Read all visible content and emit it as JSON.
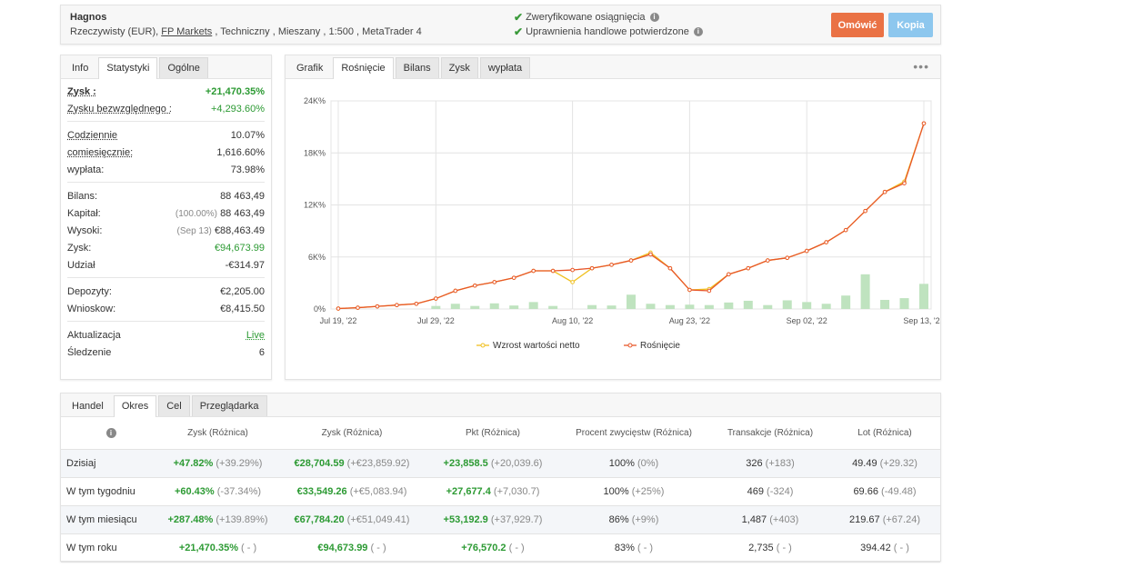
{
  "header": {
    "name": "Hagnos",
    "meta_pre": "Rzeczywisty (EUR), ",
    "broker": "FP Markets",
    "meta_post": " , Techniczny , Mieszany , 1:500 , MetaTrader 4",
    "verify1": "Zweryfikowane osiągnięcia",
    "verify2": "Uprawnienia handlowe potwierdzone",
    "comment_btn": "Omówić",
    "copy_btn": "Kopia"
  },
  "stats_tabs": [
    "Info",
    "Statystyki",
    "Ogólne"
  ],
  "stats": {
    "zysk_label": "Zysk :",
    "zysk_value": "+21,470.35%",
    "abs_label": "Zysku bezwzględnego :",
    "abs_value": "+4,293.60%",
    "daily_label": "Codziennie",
    "daily_value": "10.07%",
    "monthly_label": "comiesięcznie:",
    "monthly_value": "1,616.60%",
    "dd_label": "wypłata:",
    "dd_value": "73.98%",
    "balance_label": "Bilans:",
    "balance_value": "88 463,49",
    "equity_label": "Kapitał:",
    "equity_pct": "(100.00%)",
    "equity_value": "88 463,49",
    "high_label": "Wysoki:",
    "high_date": "(Sep 13)",
    "high_value": "€88,463.49",
    "profit_label": "Zysk:",
    "profit_value": "€94,673.99",
    "interest_label": "Udział",
    "interest_value": "-€314.97",
    "deposits_label": "Depozyty:",
    "deposits_value": "€2,205.00",
    "withdraw_label": "Wnioskow:",
    "withdraw_value": "€8,415.50",
    "update_label": "Aktualizacja",
    "update_value": "Live",
    "track_label": "Śledzenie",
    "track_value": "6"
  },
  "chart_tabs": [
    "Grafik",
    "Rośnięcie",
    "Bilans",
    "Zysk",
    "wypłata"
  ],
  "more_icon": "•••",
  "chart_data": {
    "type": "line",
    "title": "",
    "xlabel": "",
    "ylabel": "",
    "ylim": [
      0,
      24
    ],
    "yticks": [
      "0%",
      "6K%",
      "12K%",
      "18K%",
      "24K%"
    ],
    "xtick_labels": [
      "Jul 19, '22",
      "Jul 29, '22",
      "Aug 10, '22",
      "Aug 23, '22",
      "Sep 02, '22",
      "Sep 13, '22"
    ],
    "xtick_index": [
      0,
      5,
      12,
      18,
      24,
      30
    ],
    "colors": {
      "net": "#f0c020",
      "growth": "#e8572a",
      "bars": "#bfe3bf",
      "grid": "#e4e4e4"
    },
    "legend": [
      "Wzrost wartości netto",
      "Rośnięcie"
    ],
    "series": [
      {
        "name": "Wzrost wartości netto",
        "values": [
          0.05,
          0.15,
          0.3,
          0.45,
          0.6,
          1.2,
          2.1,
          2.7,
          3.1,
          3.6,
          4.4,
          4.4,
          3.1,
          4.7,
          5.1,
          5.6,
          6.5,
          4.7,
          2.2,
          2.3,
          4.0,
          4.7,
          5.6,
          5.9,
          6.7,
          7.7,
          9.1,
          11.3,
          13.5,
          14.7,
          21.4
        ]
      },
      {
        "name": "Rośnięcie",
        "values": [
          0.05,
          0.15,
          0.3,
          0.45,
          0.6,
          1.2,
          2.1,
          2.7,
          3.1,
          3.6,
          4.4,
          4.4,
          4.5,
          4.7,
          5.1,
          5.6,
          6.3,
          4.7,
          2.2,
          2.1,
          4.0,
          4.7,
          5.6,
          5.9,
          6.7,
          7.7,
          9.1,
          11.3,
          13.5,
          14.5,
          21.4
        ]
      }
    ],
    "bars": [
      0,
      0,
      0,
      0,
      0,
      0.35,
      0.6,
      0.35,
      0.65,
      0.4,
      0.8,
      0.35,
      0,
      0.45,
      0.4,
      1.65,
      0.6,
      0.45,
      0.5,
      0.45,
      0.75,
      0.95,
      0.45,
      1.0,
      0.8,
      0.6,
      1.55,
      4.0,
      1.05,
      1.25,
      2.9
    ]
  },
  "table": {
    "tabs": [
      "Handel",
      "Okres",
      "Cel",
      "Przeglądarka"
    ],
    "headers": [
      "Zysk (Różnica)",
      "Zysk (Różnica)",
      "Pkt (Różnica)",
      "Procent zwycięstw (Różnica)",
      "Transakcje (Różnica)",
      "Lot (Różnica)"
    ],
    "rows": [
      {
        "label": "Dzisiaj",
        "c1": "+47.82%",
        "d1": "(+39.29%)",
        "c2": "€28,704.59",
        "d2": "(+€23,859.92)",
        "c3": "+23,858.5",
        "d3": "(+20,039.6)",
        "c4": "100%",
        "d4": "(0%)",
        "c5": "326",
        "d5": "(+183)",
        "c6": "49.49",
        "d6": "(+29.32)"
      },
      {
        "label": "W tym tygodniu",
        "c1": "+60.43%",
        "d1": "(-37.34%)",
        "c2": "€33,549.26",
        "d2": "(+€5,083.94)",
        "c3": "+27,677.4",
        "d3": "(+7,030.7)",
        "c4": "100%",
        "d4": "(+25%)",
        "c5": "469",
        "d5": "(-324)",
        "c6": "69.66",
        "d6": "(-49.48)"
      },
      {
        "label": "W tym miesiącu",
        "c1": "+287.48%",
        "d1": "(+139.89%)",
        "c2": "€67,784.20",
        "d2": "(+€51,049.41)",
        "c3": "+53,192.9",
        "d3": "(+37,929.7)",
        "c4": "86%",
        "d4": "(+9%)",
        "c5": "1,487",
        "d5": "(+403)",
        "c6": "219.67",
        "d6": "(+67.24)"
      },
      {
        "label": "W tym roku",
        "c1": "+21,470.35%",
        "d1": "( - )",
        "c2": "€94,673.99",
        "d2": "( - )",
        "c3": "+76,570.2",
        "d3": "( - )",
        "c4": "83%",
        "d4": "( - )",
        "c5": "2,735",
        "d5": "( - )",
        "c6": "394.42",
        "d6": "( - )"
      }
    ]
  }
}
